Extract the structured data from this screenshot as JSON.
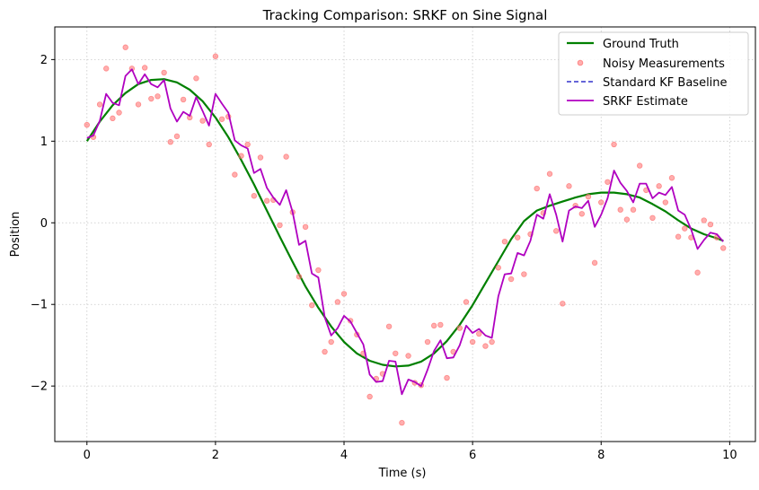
{
  "chart_data": {
    "type": "line",
    "title": "Tracking Comparison: SRKF on Sine Signal",
    "xlabel": "Time (s)",
    "ylabel": "Position",
    "xlim": [
      -0.5,
      10.4
    ],
    "ylim": [
      -2.68,
      2.4
    ],
    "xticks": [
      0,
      2,
      4,
      6,
      8,
      10
    ],
    "yticks": [
      -2,
      -1,
      0,
      1,
      2
    ],
    "xtick_labels": [
      "0",
      "2",
      "4",
      "6",
      "8",
      "10"
    ],
    "ytick_labels": [
      "−2",
      "−1",
      "0",
      "1",
      "2"
    ],
    "grid": true,
    "legend_position": "top-right",
    "series": [
      {
        "name": "Ground Truth",
        "kind": "line",
        "color": "#008000",
        "x": [
          0,
          0.2,
          0.4,
          0.6,
          0.8,
          1.0,
          1.2,
          1.4,
          1.6,
          1.8,
          2.0,
          2.2,
          2.4,
          2.6,
          2.8,
          3.0,
          3.2,
          3.4,
          3.6,
          3.8,
          4.0,
          4.2,
          4.4,
          4.6,
          4.8,
          5.0,
          5.2,
          5.4,
          5.6,
          5.8,
          6.0,
          6.2,
          6.4,
          6.6,
          6.8,
          7.0,
          7.2,
          7.4,
          7.6,
          7.8,
          8.0,
          8.2,
          8.4,
          8.6,
          8.8,
          9.0,
          9.2,
          9.4,
          9.6,
          9.8,
          9.9
        ],
        "y": [
          1.0,
          1.24,
          1.44,
          1.59,
          1.7,
          1.75,
          1.76,
          1.72,
          1.63,
          1.49,
          1.29,
          1.05,
          0.77,
          0.47,
          0.15,
          -0.17,
          -0.48,
          -0.78,
          -1.04,
          -1.27,
          -1.46,
          -1.6,
          -1.69,
          -1.74,
          -1.76,
          -1.75,
          -1.7,
          -1.6,
          -1.45,
          -1.25,
          -1.01,
          -0.74,
          -0.47,
          -0.2,
          0.02,
          0.15,
          0.21,
          0.26,
          0.31,
          0.35,
          0.37,
          0.37,
          0.35,
          0.31,
          0.23,
          0.14,
          0.03,
          -0.07,
          -0.14,
          -0.19,
          -0.22
        ]
      },
      {
        "name": "Noisy Measurements",
        "kind": "scatter",
        "color": "#ff6b6b",
        "x": [
          0,
          0.1,
          0.2,
          0.3,
          0.4,
          0.5,
          0.6,
          0.7,
          0.8,
          0.9,
          1.0,
          1.1,
          1.2,
          1.3,
          1.4,
          1.5,
          1.6,
          1.7,
          1.8,
          1.9,
          2.0,
          2.1,
          2.2,
          2.3,
          2.4,
          2.5,
          2.6,
          2.7,
          2.8,
          2.9,
          3.0,
          3.1,
          3.2,
          3.3,
          3.4,
          3.5,
          3.6,
          3.7,
          3.8,
          3.9,
          4.0,
          4.1,
          4.2,
          4.3,
          4.4,
          4.5,
          4.6,
          4.7,
          4.8,
          4.9,
          5.0,
          5.1,
          5.2,
          5.3,
          5.4,
          5.5,
          5.6,
          5.7,
          5.8,
          5.9,
          6.0,
          6.1,
          6.2,
          6.3,
          6.4,
          6.5,
          6.6,
          6.7,
          6.8,
          6.9,
          7.0,
          7.1,
          7.2,
          7.3,
          7.4,
          7.5,
          7.6,
          7.7,
          7.8,
          7.9,
          8.0,
          8.1,
          8.2,
          8.3,
          8.4,
          8.5,
          8.6,
          8.7,
          8.8,
          8.9,
          9.0,
          9.1,
          9.2,
          9.3,
          9.4,
          9.5,
          9.6,
          9.7,
          9.8,
          9.9
        ],
        "y": [
          1.2,
          1.05,
          1.45,
          1.89,
          1.28,
          1.35,
          2.15,
          1.89,
          1.45,
          1.9,
          1.52,
          1.55,
          1.84,
          0.99,
          1.06,
          1.51,
          1.29,
          1.77,
          1.25,
          0.96,
          2.04,
          1.27,
          1.3,
          0.59,
          0.82,
          0.96,
          0.33,
          0.8,
          0.27,
          0.28,
          -0.03,
          0.81,
          0.13,
          -0.66,
          -0.05,
          -1.01,
          -0.58,
          -1.58,
          -1.46,
          -0.97,
          -0.87,
          -1.2,
          -1.37,
          -1.6,
          -2.13,
          -1.91,
          -1.85,
          -1.27,
          -1.6,
          -2.45,
          -1.63,
          -1.96,
          -1.99,
          -1.46,
          -1.26,
          -1.25,
          -1.9,
          -1.58,
          -1.29,
          -0.97,
          -1.46,
          -1.36,
          -1.51,
          -1.46,
          -0.55,
          -0.23,
          -0.69,
          -0.18,
          -0.63,
          -0.14,
          0.42,
          0.12,
          0.6,
          -0.1,
          -0.99,
          0.45,
          0.21,
          0.11,
          0.32,
          -0.49,
          0.25,
          0.5,
          0.96,
          0.16,
          0.04,
          0.16,
          0.7,
          0.4,
          0.06,
          0.45,
          0.25,
          0.55,
          -0.17,
          -0.07,
          -0.18,
          -0.61,
          0.03,
          -0.02,
          -0.18,
          -0.31
        ]
      },
      {
        "name": "Standard KF Baseline",
        "kind": "dashed",
        "color": "#3333cc",
        "x": [],
        "y": []
      },
      {
        "name": "SRKF Estimate",
        "kind": "line",
        "color": "#b000c0",
        "x": [
          0,
          0.1,
          0.2,
          0.3,
          0.4,
          0.5,
          0.6,
          0.7,
          0.8,
          0.9,
          1.0,
          1.1,
          1.2,
          1.3,
          1.4,
          1.5,
          1.6,
          1.7,
          1.8,
          1.9,
          2.0,
          2.1,
          2.2,
          2.3,
          2.4,
          2.5,
          2.6,
          2.7,
          2.8,
          2.9,
          3.0,
          3.1,
          3.2,
          3.3,
          3.4,
          3.5,
          3.6,
          3.7,
          3.8,
          3.9,
          4.0,
          4.1,
          4.2,
          4.3,
          4.4,
          4.5,
          4.6,
          4.7,
          4.8,
          4.9,
          5.0,
          5.1,
          5.2,
          5.3,
          5.4,
          5.5,
          5.6,
          5.7,
          5.8,
          5.9,
          6.0,
          6.1,
          6.2,
          6.3,
          6.4,
          6.5,
          6.6,
          6.7,
          6.8,
          6.9,
          7.0,
          7.1,
          7.2,
          7.3,
          7.4,
          7.5,
          7.6,
          7.7,
          7.8,
          7.9,
          8.0,
          8.1,
          8.2,
          8.3,
          8.4,
          8.5,
          8.6,
          8.7,
          8.8,
          8.9,
          9.0,
          9.1,
          9.2,
          9.3,
          9.4,
          9.5,
          9.6,
          9.7,
          9.8,
          9.9
        ],
        "y": [
          1.04,
          1.07,
          1.25,
          1.58,
          1.47,
          1.44,
          1.8,
          1.88,
          1.7,
          1.82,
          1.7,
          1.66,
          1.75,
          1.4,
          1.24,
          1.36,
          1.31,
          1.54,
          1.37,
          1.19,
          1.58,
          1.46,
          1.35,
          1.01,
          0.95,
          0.91,
          0.61,
          0.66,
          0.43,
          0.31,
          0.22,
          0.4,
          0.13,
          -0.27,
          -0.22,
          -0.62,
          -0.67,
          -1.16,
          -1.38,
          -1.29,
          -1.14,
          -1.21,
          -1.35,
          -1.49,
          -1.86,
          -1.95,
          -1.94,
          -1.69,
          -1.7,
          -2.1,
          -1.92,
          -1.95,
          -2.0,
          -1.8,
          -1.57,
          -1.44,
          -1.66,
          -1.65,
          -1.5,
          -1.26,
          -1.35,
          -1.3,
          -1.38,
          -1.41,
          -0.9,
          -0.63,
          -0.62,
          -0.37,
          -0.4,
          -0.22,
          0.1,
          0.05,
          0.35,
          0.1,
          -0.23,
          0.15,
          0.2,
          0.18,
          0.27,
          -0.05,
          0.1,
          0.3,
          0.64,
          0.49,
          0.39,
          0.25,
          0.48,
          0.48,
          0.3,
          0.37,
          0.34,
          0.44,
          0.15,
          0.1,
          -0.08,
          -0.32,
          -0.21,
          -0.12,
          -0.14,
          -0.23
        ]
      }
    ]
  }
}
